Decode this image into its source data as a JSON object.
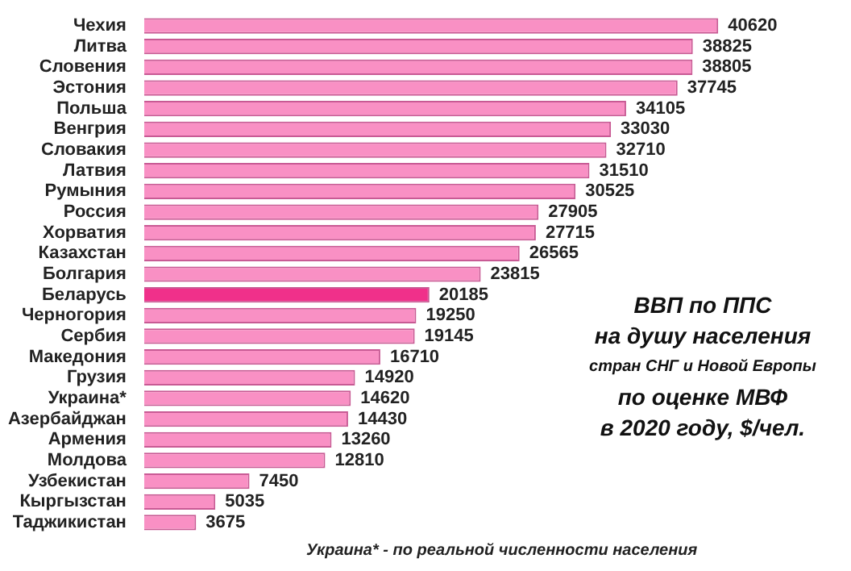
{
  "chart_data": {
    "type": "bar",
    "orientation": "horizontal",
    "title": "ВВП по ППС\nна душу населения\nстран СНГ и Новой Европы\nпо оценке МВФ\nв 2020 году, $/чел.",
    "categories": [
      "Чехия",
      "Литва",
      "Словения",
      "Эстония",
      "Польша",
      "Венгрия",
      "Словакия",
      "Латвия",
      "Румыния",
      "Россия",
      "Хорватия",
      "Казахстан",
      "Болгария",
      "Беларусь",
      "Черногория",
      "Сербия",
      "Македония",
      "Грузия",
      "Украина*",
      "Азербайджан",
      "Армения",
      "Молдова",
      "Узбекистан",
      "Кыргызстан",
      "Таджикистан"
    ],
    "values": [
      40620,
      38825,
      38805,
      37745,
      34105,
      33030,
      32710,
      31510,
      30525,
      27905,
      27715,
      26565,
      23815,
      20185,
      19250,
      19145,
      16710,
      14920,
      14620,
      14430,
      13260,
      12810,
      7450,
      5035,
      3675
    ],
    "colors": [
      "#f990c4",
      "#f990c4",
      "#f990c4",
      "#f990c4",
      "#f990c4",
      "#f990c4",
      "#f990c4",
      "#f990c4",
      "#f990c4",
      "#f990c4",
      "#f990c4",
      "#f990c4",
      "#f990c4",
      "#f0308a",
      "#f990c4",
      "#f990c4",
      "#f990c4",
      "#f990c4",
      "#f990c4",
      "#f990c4",
      "#f990c4",
      "#f990c4",
      "#f990c4",
      "#f990c4",
      "#f990c4"
    ],
    "data_labels": true,
    "legend": false,
    "annotations": [
      "Украина* - по реальной численности населения"
    ]
  }
}
